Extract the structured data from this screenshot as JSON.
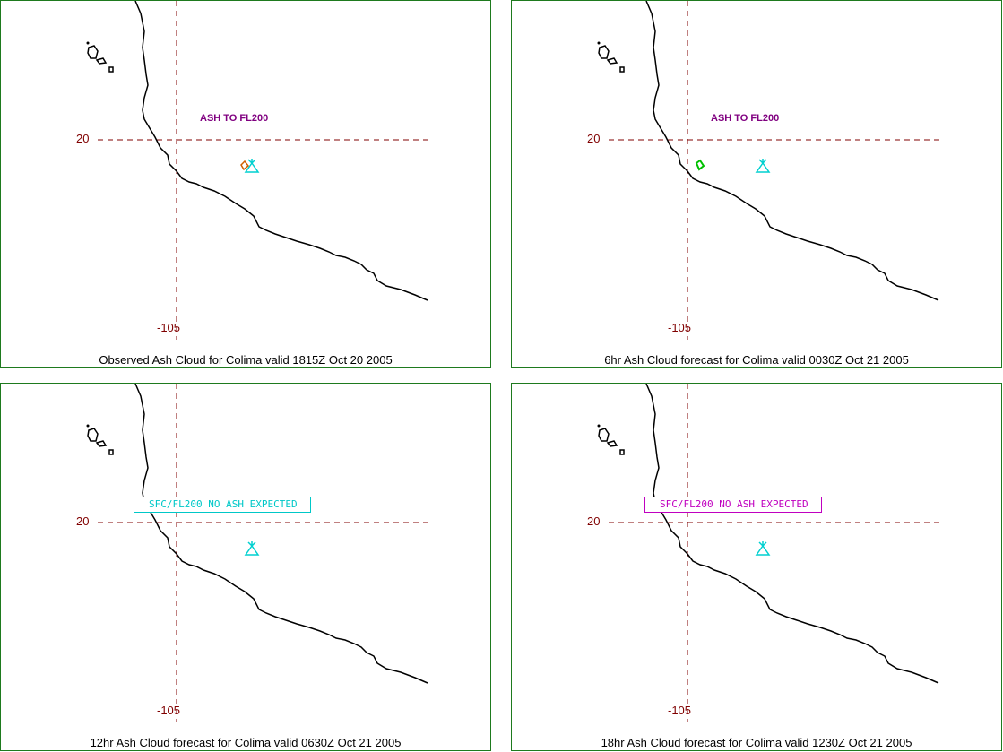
{
  "colors": {
    "panel_border": "#1e7a1e",
    "grid": "#800000",
    "coastline": "#000000",
    "volcano": "#00d0d0",
    "ash_label": "#800080",
    "no_ash_cyan": "#00c8c8",
    "no_ash_magenta": "#c000c0",
    "observed_ash": "#d06000",
    "forecast_ash_6hr": "#00c000"
  },
  "grid_labels": {
    "lat": "20",
    "lon": "-105"
  },
  "icons": {
    "volcano": "volcano-symbol-icon"
  },
  "panels": [
    {
      "caption": "Observed Ash Cloud for Colima valid 1815Z Oct 20 2005",
      "ash_text": "ASH TO FL200",
      "no_ash_text": ""
    },
    {
      "caption": "6hr Ash Cloud forecast for Colima valid 0030Z Oct 21 2005",
      "ash_text": "ASH TO FL200",
      "no_ash_text": ""
    },
    {
      "caption": "12hr Ash Cloud forecast for Colima valid 0630Z Oct 21 2005",
      "ash_text": "",
      "no_ash_text": "SFC/FL200 NO ASH EXPECTED"
    },
    {
      "caption": "18hr Ash Cloud forecast for Colima valid 1230Z Oct 21 2005",
      "ash_text": "",
      "no_ash_text": "SFC/FL200 NO ASH EXPECTED"
    }
  ]
}
